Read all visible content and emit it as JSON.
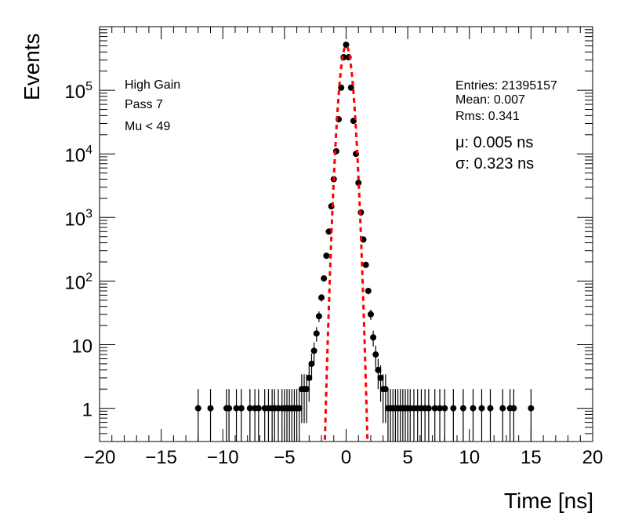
{
  "chart_data": {
    "type": "scatter",
    "xlabel": "Time [ns]",
    "ylabel": "Events",
    "xlim": [
      -20,
      20
    ],
    "ylim": [
      0.3,
      1000000
    ],
    "yscale": "log",
    "grid": false,
    "xticks": [
      -20,
      -15,
      -10,
      -5,
      0,
      5,
      10,
      15,
      20
    ],
    "xtick_labels": [
      "−20",
      "−15",
      "−10",
      "−5",
      "0",
      "5",
      "10",
      "15",
      "20"
    ],
    "yticks": [
      {
        "value": 1,
        "base": "1",
        "exp": ""
      },
      {
        "value": 10,
        "base": "10",
        "exp": ""
      },
      {
        "value": 100,
        "base": "10",
        "exp": "2"
      },
      {
        "value": 1000,
        "base": "10",
        "exp": "3"
      },
      {
        "value": 10000,
        "base": "10",
        "exp": "4"
      },
      {
        "value": 100000,
        "base": "10",
        "exp": "5"
      }
    ],
    "labels_left": [
      "High Gain",
      "Pass 7",
      "Mu < 49"
    ],
    "stats": [
      "Entries: 21395157",
      "Mean: 0.007",
      "Rms: 0.341"
    ],
    "fit_text": [
      "μ: 0.005 ns",
      "σ: 0.323 ns"
    ],
    "fit": {
      "mu": 0.005,
      "sigma": 0.323,
      "peak": 500000,
      "color": "#ff0000"
    },
    "series": [
      {
        "marker_color": "#000000",
        "points": [
          [
            -12.0,
            1
          ],
          [
            -11.0,
            1
          ],
          [
            -9.7,
            1
          ],
          [
            -9.5,
            1
          ],
          [
            -8.9,
            1
          ],
          [
            -8.5,
            1
          ],
          [
            -7.8,
            1
          ],
          [
            -7.4,
            1
          ],
          [
            -7.1,
            1
          ],
          [
            -6.6,
            1
          ],
          [
            -6.3,
            1
          ],
          [
            -6.0,
            1
          ],
          [
            -5.8,
            1
          ],
          [
            -5.5,
            1
          ],
          [
            -5.2,
            1
          ],
          [
            -5.0,
            1
          ],
          [
            -4.8,
            1
          ],
          [
            -4.6,
            1
          ],
          [
            -4.4,
            1
          ],
          [
            -4.2,
            1
          ],
          [
            -4.0,
            1
          ],
          [
            -3.8,
            1
          ],
          [
            -3.6,
            2
          ],
          [
            -3.4,
            2
          ],
          [
            -3.2,
            2
          ],
          [
            -3.0,
            3
          ],
          [
            -2.8,
            5
          ],
          [
            -2.6,
            8
          ],
          [
            -2.4,
            15
          ],
          [
            -2.2,
            28
          ],
          [
            -2.0,
            55
          ],
          [
            -1.8,
            110
          ],
          [
            -1.6,
            250
          ],
          [
            -1.4,
            600
          ],
          [
            -1.2,
            1500
          ],
          [
            -1.0,
            4000
          ],
          [
            -0.8,
            11000
          ],
          [
            -0.6,
            35000
          ],
          [
            -0.4,
            110000
          ],
          [
            -0.2,
            330000
          ],
          [
            0.0,
            520000
          ],
          [
            0.2,
            330000
          ],
          [
            0.4,
            110000
          ],
          [
            0.6,
            33000
          ],
          [
            0.8,
            10000
          ],
          [
            1.0,
            3500
          ],
          [
            1.2,
            1200
          ],
          [
            1.4,
            450
          ],
          [
            1.6,
            180
          ],
          [
            1.8,
            70
          ],
          [
            2.0,
            30
          ],
          [
            2.2,
            13
          ],
          [
            2.4,
            7
          ],
          [
            2.6,
            4
          ],
          [
            2.8,
            3
          ],
          [
            3.0,
            2
          ],
          [
            3.2,
            2
          ],
          [
            3.4,
            1
          ],
          [
            3.6,
            1
          ],
          [
            3.8,
            1
          ],
          [
            4.0,
            1
          ],
          [
            4.2,
            1
          ],
          [
            4.4,
            1
          ],
          [
            4.6,
            1
          ],
          [
            4.8,
            1
          ],
          [
            5.0,
            1
          ],
          [
            5.2,
            1
          ],
          [
            5.5,
            1
          ],
          [
            5.8,
            1
          ],
          [
            6.1,
            1
          ],
          [
            6.4,
            1
          ],
          [
            6.7,
            1
          ],
          [
            7.2,
            1
          ],
          [
            7.6,
            1
          ],
          [
            8.0,
            1
          ],
          [
            8.7,
            1
          ],
          [
            9.5,
            1
          ],
          [
            10.3,
            1
          ],
          [
            11.0,
            1
          ],
          [
            11.7,
            1
          ],
          [
            12.7,
            1
          ],
          [
            13.3,
            1
          ],
          [
            13.6,
            1
          ],
          [
            15.0,
            1
          ]
        ]
      }
    ]
  }
}
